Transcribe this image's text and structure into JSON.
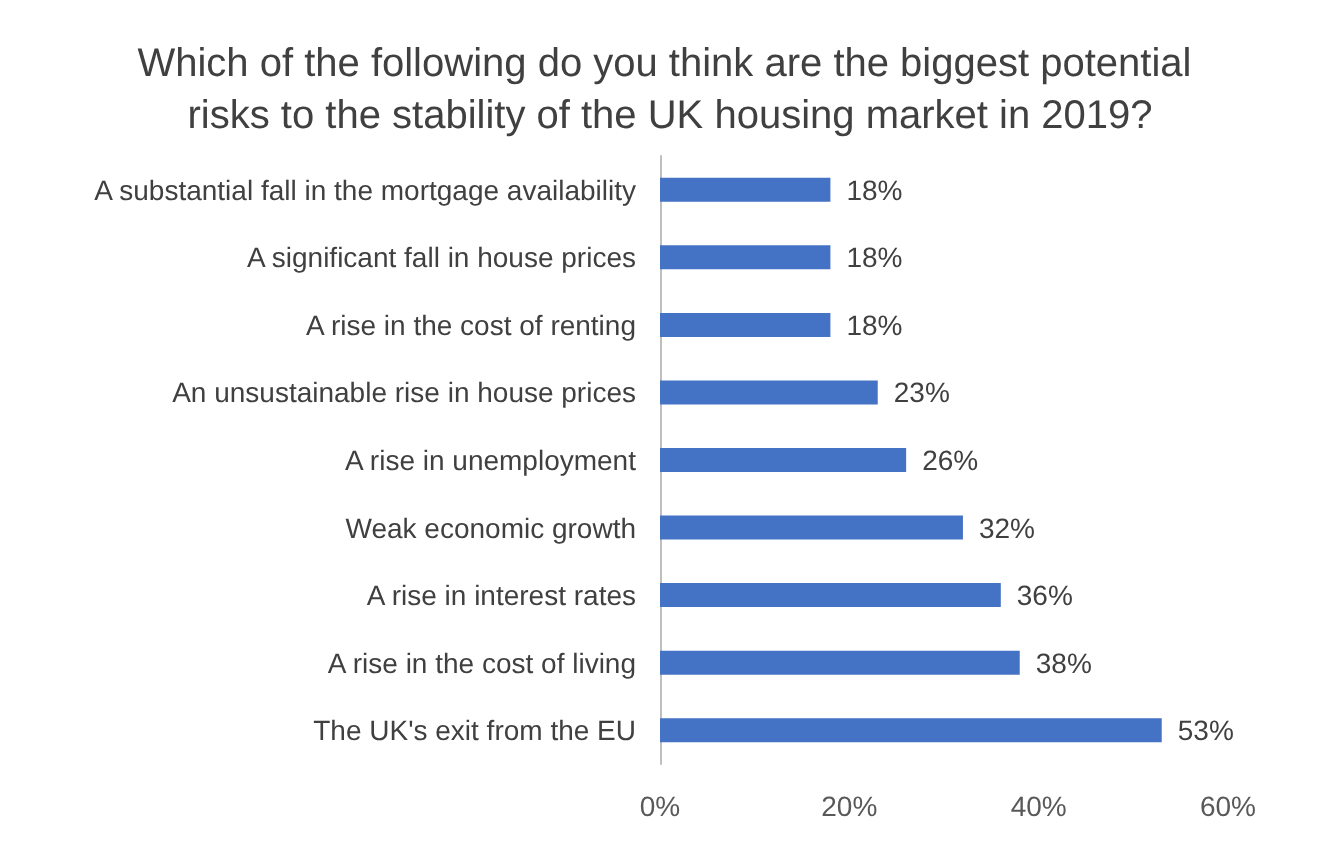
{
  "chart_data": {
    "type": "bar",
    "orientation": "horizontal",
    "title": "Which of the following do you think are the biggest potential risks to the stability of the UK housing market in 2019?",
    "categories": [
      "A substantial fall in the mortgage availability",
      "A significant fall in house prices",
      "A rise in the cost of renting",
      "An unsustainable rise in house prices",
      "A rise in unemployment",
      "Weak economic growth",
      "A rise in interest rates",
      "A rise in the cost of living",
      "The UK's exit from the EU"
    ],
    "values": [
      18,
      18,
      18,
      23,
      26,
      32,
      36,
      38,
      53
    ],
    "value_labels": [
      "18%",
      "18%",
      "18%",
      "23%",
      "26%",
      "32%",
      "36%",
      "38%",
      "53%"
    ],
    "color": "#4472c4",
    "xlim": [
      0,
      60
    ],
    "xticks": [
      {
        "value": 0,
        "label": "0%"
      },
      {
        "value": 20,
        "label": "20%"
      },
      {
        "value": 40,
        "label": "40%"
      },
      {
        "value": 60,
        "label": "60%"
      }
    ],
    "grid": false
  }
}
